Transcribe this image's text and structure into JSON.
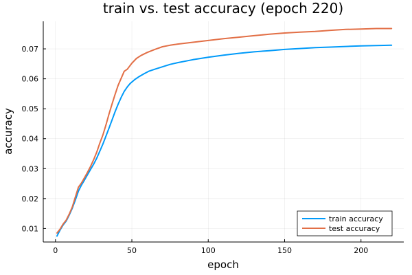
{
  "chart_data": {
    "type": "line",
    "title": "train vs. test accuracy (epoch 220)",
    "xlabel": "epoch",
    "ylabel": "accuracy",
    "xlim": [
      -8,
      228
    ],
    "ylim": [
      0.0055,
      0.0792
    ],
    "xticks": [
      0,
      50,
      100,
      150,
      200
    ],
    "yticks": [
      0.01,
      0.02,
      0.03,
      0.04,
      0.05,
      0.06,
      0.07
    ],
    "ytick_labels": [
      "0.01",
      "0.02",
      "0.03",
      "0.04",
      "0.05",
      "0.06",
      "0.07"
    ],
    "grid": true,
    "legend_position": "bottom-right",
    "series": [
      {
        "name": "train accuracy",
        "color": "#009af9",
        "x": [
          1,
          3,
          5,
          7,
          9,
          11,
          13,
          15,
          17,
          19,
          21,
          23,
          25,
          27,
          29,
          31,
          33,
          35,
          37,
          39,
          41,
          43,
          45,
          47,
          49,
          52,
          55,
          58,
          61,
          65,
          70,
          75,
          80,
          90,
          100,
          110,
          120,
          130,
          140,
          150,
          160,
          170,
          180,
          190,
          200,
          210,
          220
        ],
        "y": [
          0.0075,
          0.0095,
          0.0112,
          0.0125,
          0.0145,
          0.0168,
          0.0195,
          0.0225,
          0.0245,
          0.0262,
          0.028,
          0.0298,
          0.0315,
          0.0335,
          0.0358,
          0.0382,
          0.0408,
          0.0435,
          0.0462,
          0.049,
          0.0515,
          0.0538,
          0.0558,
          0.0573,
          0.0585,
          0.0598,
          0.0608,
          0.0617,
          0.0625,
          0.0632,
          0.064,
          0.0648,
          0.0654,
          0.0664,
          0.0672,
          0.0679,
          0.0685,
          0.069,
          0.0694,
          0.0698,
          0.0701,
          0.0704,
          0.0706,
          0.0708,
          0.071,
          0.0711,
          0.0712
        ]
      },
      {
        "name": "test accuracy",
        "color": "#e26f46",
        "x": [
          1,
          3,
          5,
          7,
          9,
          11,
          13,
          15,
          17,
          19,
          21,
          23,
          25,
          27,
          29,
          31,
          33,
          35,
          37,
          39,
          41,
          43,
          45,
          47,
          50,
          53,
          56,
          60,
          65,
          70,
          75,
          80,
          90,
          100,
          110,
          120,
          130,
          140,
          150,
          160,
          170,
          180,
          190,
          200,
          210,
          220
        ],
        "y": [
          0.0085,
          0.0098,
          0.0115,
          0.0128,
          0.0148,
          0.0172,
          0.0205,
          0.0238,
          0.0252,
          0.027,
          0.0288,
          0.0308,
          0.033,
          0.0355,
          0.0385,
          0.0412,
          0.0445,
          0.0482,
          0.0515,
          0.0548,
          0.0578,
          0.0602,
          0.0625,
          0.0632,
          0.0652,
          0.0668,
          0.0678,
          0.0688,
          0.0698,
          0.0707,
          0.0712,
          0.0716,
          0.0722,
          0.0728,
          0.0734,
          0.0739,
          0.0744,
          0.0749,
          0.0753,
          0.0756,
          0.0758,
          0.0762,
          0.0765,
          0.0766,
          0.0768,
          0.0768
        ]
      }
    ]
  }
}
